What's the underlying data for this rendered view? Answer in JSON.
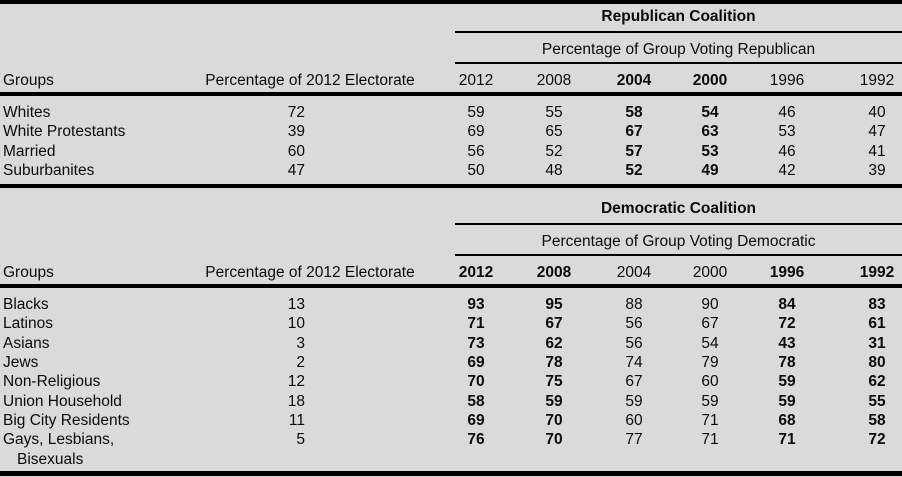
{
  "colors": {
    "background": "#dadada",
    "text": "#0b0b0b",
    "rule": "#000000"
  },
  "chart_data": [
    {
      "type": "table",
      "id": "republican",
      "title": "Republican Coalition",
      "subtitle": "Percentage of Group Voting Republican",
      "group_header": "Groups",
      "electorate_header": "Percentage of 2012 Electorate",
      "years": [
        "2012",
        "2008",
        "2004",
        "2000",
        "1996",
        "1992"
      ],
      "bold_year_flags": [
        false,
        false,
        true,
        true,
        false,
        false
      ],
      "rows": [
        {
          "group": "Whites",
          "electorate": "72",
          "values": [
            "59",
            "55",
            "58",
            "54",
            "46",
            "40"
          ]
        },
        {
          "group": "White Protestants",
          "electorate": "39",
          "values": [
            "69",
            "65",
            "67",
            "63",
            "53",
            "47"
          ]
        },
        {
          "group": "Married",
          "electorate": "60",
          "values": [
            "56",
            "52",
            "57",
            "53",
            "46",
            "41"
          ]
        },
        {
          "group": "Suburbanites",
          "electorate": "47",
          "values": [
            "50",
            "48",
            "52",
            "49",
            "42",
            "39"
          ]
        }
      ]
    },
    {
      "type": "table",
      "id": "democratic",
      "title": "Democratic Coalition",
      "subtitle": "Percentage of Group Voting Democratic",
      "group_header": "Groups",
      "electorate_header": "Percentage of 2012 Electorate",
      "years": [
        "2012",
        "2008",
        "2004",
        "2000",
        "1996",
        "1992"
      ],
      "bold_year_flags": [
        true,
        true,
        false,
        false,
        true,
        true
      ],
      "rows": [
        {
          "group": "Blacks",
          "electorate": "13",
          "values": [
            "93",
            "95",
            "88",
            "90",
            "84",
            "83"
          ]
        },
        {
          "group": "Latinos",
          "electorate": "10",
          "values": [
            "71",
            "67",
            "56",
            "67",
            "72",
            "61"
          ]
        },
        {
          "group": "Asians",
          "electorate": "3",
          "values": [
            "73",
            "62",
            "56",
            "54",
            "43",
            "31"
          ]
        },
        {
          "group": "Jews",
          "electorate": "2",
          "values": [
            "69",
            "78",
            "74",
            "79",
            "78",
            "80"
          ]
        },
        {
          "group": "Non-Religious",
          "electorate": "12",
          "values": [
            "70",
            "75",
            "67",
            "60",
            "59",
            "62"
          ]
        },
        {
          "group": "Union Household",
          "electorate": "18",
          "values": [
            "58",
            "59",
            "59",
            "59",
            "59",
            "55"
          ]
        },
        {
          "group": "Big City Residents",
          "electorate": "11",
          "values": [
            "69",
            "70",
            "60",
            "71",
            "68",
            "58"
          ]
        },
        {
          "group": "Gays, Lesbians, Bisexuals",
          "electorate": "5",
          "values": [
            "76",
            "70",
            "77",
            "71",
            "71",
            "72"
          ]
        }
      ]
    }
  ]
}
